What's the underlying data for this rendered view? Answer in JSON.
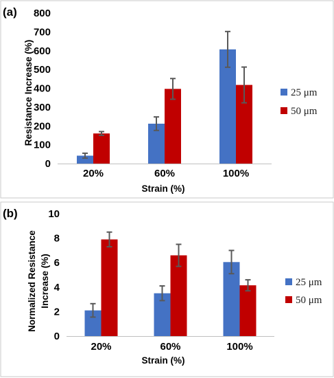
{
  "chart_data": [
    {
      "type": "bar",
      "panel_label": "(a)",
      "categories": [
        "20%",
        "60%",
        "100%"
      ],
      "series": [
        {
          "name": "25 μm",
          "color": "#4472c4",
          "values": [
            42,
            212,
            607
          ],
          "errors": [
            13,
            36,
            95
          ]
        },
        {
          "name": "50 μm",
          "color": "#c00000",
          "values": [
            160,
            397,
            418
          ],
          "errors": [
            10,
            55,
            95
          ]
        }
      ],
      "xlabel": "Strain (%)",
      "ylabel": "Resistance Increase (%)",
      "ylim": [
        0,
        800
      ],
      "yticks": [
        "0",
        "100",
        "200",
        "300",
        "400",
        "500",
        "600",
        "700",
        "800"
      ],
      "legend_position": "right"
    },
    {
      "type": "bar",
      "panel_label": "(b)",
      "categories": [
        "20%",
        "60%",
        "100%"
      ],
      "series": [
        {
          "name": "25 μm",
          "color": "#4472c4",
          "values": [
            2.1,
            3.5,
            6.05
          ],
          "errors": [
            0.55,
            0.6,
            0.95
          ]
        },
        {
          "name": "50 μm",
          "color": "#c00000",
          "values": [
            7.9,
            6.6,
            4.15
          ],
          "errors": [
            0.6,
            0.9,
            0.45
          ]
        }
      ],
      "xlabel": "Strain (%)",
      "ylabel_line1": "Normalized Resistance",
      "ylabel_line2": "Increase (%)",
      "ylim": [
        0,
        10
      ],
      "yticks": [
        "0",
        "2",
        "4",
        "6",
        "8",
        "10"
      ],
      "legend_position": "right"
    }
  ]
}
